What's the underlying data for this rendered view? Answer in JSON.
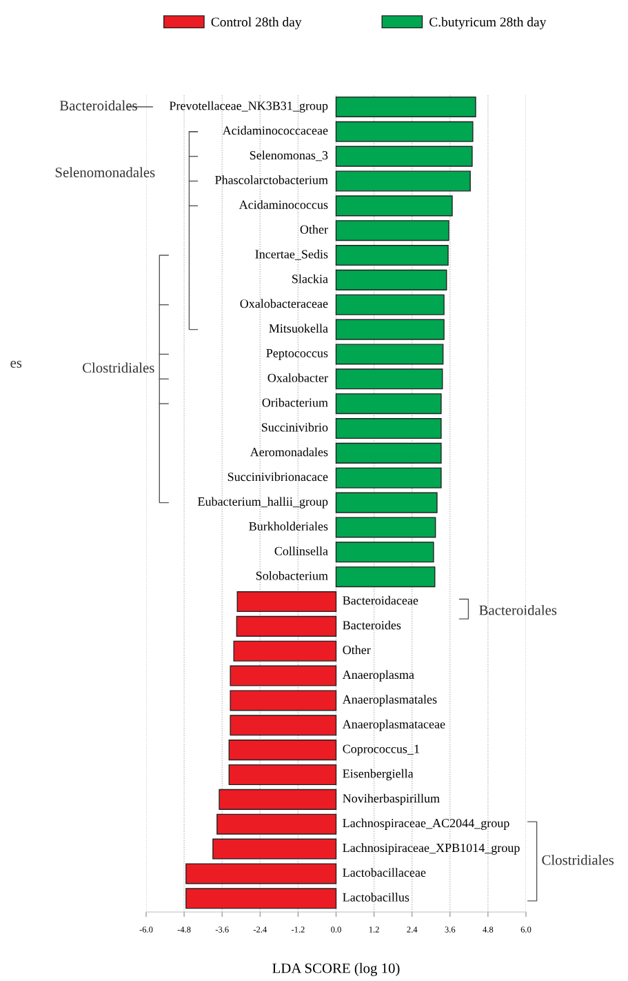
{
  "chart_data": {
    "type": "bar",
    "orientation": "horizontal",
    "xlabel": "LDA SCORE (log 10)",
    "categories": [
      "Prevotellaceae_NK3B31_group",
      "Acidaminococcaceae",
      "Selenomonas_3",
      "Phascolarctobacterium",
      "Acidaminococcus",
      "Other",
      "Incertae_Sedis",
      "Slackia",
      "Oxalobacteraceae",
      "Mitsuokella",
      "Peptococcus",
      "Oxalobacter",
      "Oribacterium",
      "Succinivibrio",
      "Aeromonadales",
      "Succinivibrionacace",
      "Eubacterium_hallii_group",
      "Burkholderiales",
      "Collinsella",
      "Solobacterium",
      "Bacteroidaceae",
      "Bacteroides",
      "Other",
      "Anaeroplasma",
      "Anaeroplasmatales",
      "Anaeroplasmataceae",
      "Coprococcus_1",
      "Eisenbergiella",
      "Noviherbaspirillum",
      "Lachnospiraceae_AC2044_group",
      "Lachnosipiraceae_XPB1014_group",
      "Lactobacillaceae",
      "Lactobacillus"
    ],
    "series": [
      {
        "name": "Control 28th day",
        "color": "#ec1c24",
        "values": [
          null,
          null,
          null,
          null,
          null,
          null,
          null,
          null,
          null,
          null,
          null,
          null,
          null,
          null,
          null,
          null,
          null,
          null,
          null,
          null,
          -3.12,
          -3.14,
          -3.23,
          -3.34,
          -3.34,
          -3.34,
          -3.38,
          -3.38,
          -3.69,
          -3.76,
          -3.89,
          -4.74,
          -4.74
        ]
      },
      {
        "name": "C.butyricum 28th day",
        "color": "#00a650",
        "values": [
          4.41,
          4.32,
          4.3,
          4.24,
          3.67,
          3.56,
          3.54,
          3.49,
          3.41,
          3.41,
          3.38,
          3.36,
          3.32,
          3.32,
          3.32,
          3.32,
          3.19,
          3.14,
          3.08,
          3.12,
          null,
          null,
          null,
          null,
          null,
          null,
          null,
          null,
          null,
          null,
          null,
          null,
          null
        ]
      }
    ],
    "xlim": [
      -6.0,
      6.0
    ],
    "xticks": [
      {
        "value": -6.0,
        "label": "-6.0"
      },
      {
        "value": -4.8,
        "label": "-4.8"
      },
      {
        "value": -3.6,
        "label": "-3.6"
      },
      {
        "value": -2.4,
        "label": "-2.4"
      },
      {
        "value": -1.2,
        "label": "-1.2"
      },
      {
        "value": 0,
        "label": "0.0"
      },
      {
        "value": 1.2,
        "label": "1.2"
      },
      {
        "value": 2.4,
        "label": "2.4"
      },
      {
        "value": 3.6,
        "label": "3.6"
      },
      {
        "value": 4.8,
        "label": "4.8"
      },
      {
        "value": 6.0,
        "label": "6.0"
      }
    ],
    "annotations": [
      "Bacteroidales",
      "Selenomonadales",
      "Clostridiales",
      "Bacteroidales",
      "Clostridiales",
      "es"
    ],
    "grid": "x",
    "legend": "top"
  }
}
